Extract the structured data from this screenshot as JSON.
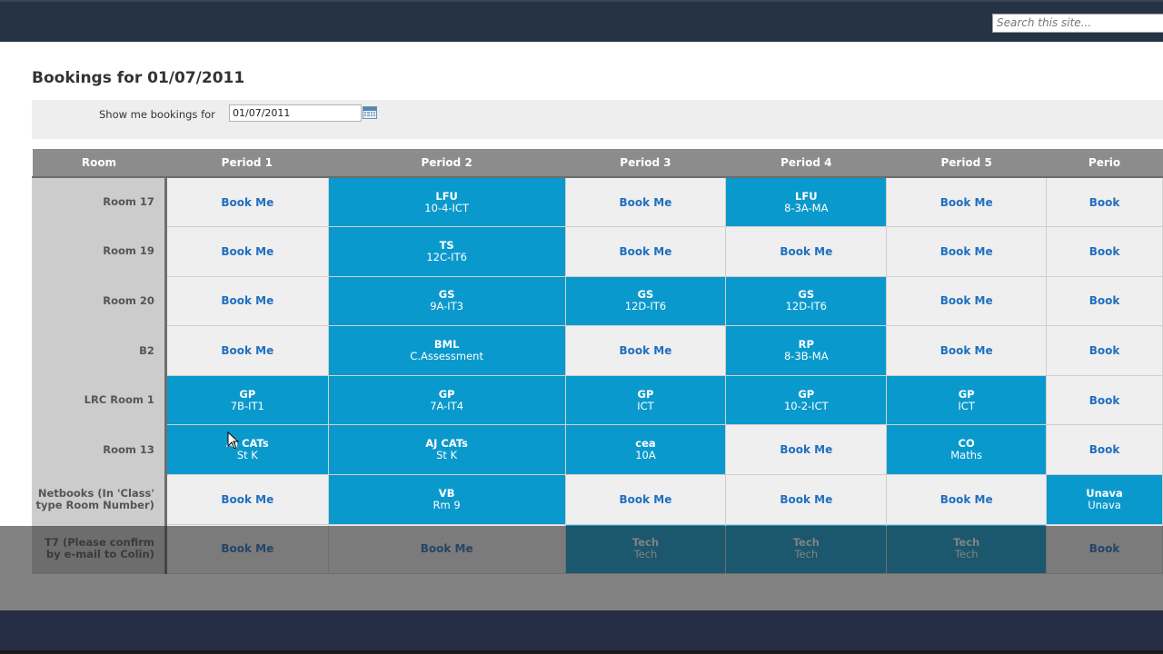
{
  "header": {
    "search_placeholder": "Search this site..."
  },
  "page": {
    "title": "Bookings for 01/07/2011"
  },
  "filter": {
    "label": "Show me bookings for",
    "date_value": "01/07/2011"
  },
  "table": {
    "headers": [
      "Room",
      "Period 1",
      "Period 2",
      "Period 3",
      "Period 4",
      "Period 5",
      "Perio"
    ],
    "rows": [
      {
        "room": "Room 17",
        "cells": [
          {
            "type": "free",
            "label": "Book Me"
          },
          {
            "type": "booked",
            "who": "LFU",
            "cls": "10-4-ICT"
          },
          {
            "type": "free",
            "label": "Book Me"
          },
          {
            "type": "booked",
            "who": "LFU",
            "cls": "8-3A-MA"
          },
          {
            "type": "free",
            "label": "Book Me"
          },
          {
            "type": "free",
            "label": "Book"
          }
        ]
      },
      {
        "room": "Room 19",
        "cells": [
          {
            "type": "free",
            "label": "Book Me"
          },
          {
            "type": "booked",
            "who": "TS",
            "cls": "12C-IT6"
          },
          {
            "type": "free",
            "label": "Book Me"
          },
          {
            "type": "free",
            "label": "Book Me"
          },
          {
            "type": "free",
            "label": "Book Me"
          },
          {
            "type": "free",
            "label": "Book"
          }
        ]
      },
      {
        "room": "Room 20",
        "cells": [
          {
            "type": "free",
            "label": "Book Me"
          },
          {
            "type": "booked",
            "who": "GS",
            "cls": "9A-IT3"
          },
          {
            "type": "booked",
            "who": "GS",
            "cls": "12D-IT6"
          },
          {
            "type": "booked",
            "who": "GS",
            "cls": "12D-IT6"
          },
          {
            "type": "free",
            "label": "Book Me"
          },
          {
            "type": "free",
            "label": "Book"
          }
        ]
      },
      {
        "room": "B2",
        "cells": [
          {
            "type": "free",
            "label": "Book Me"
          },
          {
            "type": "booked",
            "who": "BML",
            "cls": "C.Assessment"
          },
          {
            "type": "free",
            "label": "Book Me"
          },
          {
            "type": "booked",
            "who": "RP",
            "cls": "8-3B-MA"
          },
          {
            "type": "free",
            "label": "Book Me"
          },
          {
            "type": "free",
            "label": "Book"
          }
        ]
      },
      {
        "room": "LRC Room 1",
        "cells": [
          {
            "type": "booked",
            "who": "GP",
            "cls": "7B-IT1"
          },
          {
            "type": "booked",
            "who": "GP",
            "cls": "7A-IT4"
          },
          {
            "type": "booked",
            "who": "GP",
            "cls": "ICT"
          },
          {
            "type": "booked",
            "who": "GP",
            "cls": "10-2-ICT"
          },
          {
            "type": "booked",
            "who": "GP",
            "cls": "ICT"
          },
          {
            "type": "free",
            "label": "Book"
          }
        ]
      },
      {
        "room": "Room 13",
        "cells": [
          {
            "type": "booked",
            "who": "AJ CATs",
            "cls": "St K"
          },
          {
            "type": "booked",
            "who": "AJ CATs",
            "cls": "St K"
          },
          {
            "type": "booked",
            "who": "cea",
            "cls": "10A"
          },
          {
            "type": "free",
            "label": "Book Me"
          },
          {
            "type": "booked",
            "who": "CO",
            "cls": "Maths"
          },
          {
            "type": "free",
            "label": "Book"
          }
        ]
      },
      {
        "room": "Netbooks (In 'Class' type Room Number)",
        "cells": [
          {
            "type": "free",
            "label": "Book Me"
          },
          {
            "type": "booked",
            "who": "VB",
            "cls": "Rm 9"
          },
          {
            "type": "free",
            "label": "Book Me"
          },
          {
            "type": "free",
            "label": "Book Me"
          },
          {
            "type": "free",
            "label": "Book Me"
          },
          {
            "type": "booked",
            "who": "Unava",
            "cls": "Unava"
          }
        ]
      },
      {
        "room": "T7 (Please confirm by e-mail to Colin)",
        "cells": [
          {
            "type": "free",
            "label": "Book Me"
          },
          {
            "type": "free",
            "label": "Book Me"
          },
          {
            "type": "booked",
            "who": "Tech",
            "cls": "Tech"
          },
          {
            "type": "booked",
            "who": "Tech",
            "cls": "Tech"
          },
          {
            "type": "booked",
            "who": "Tech",
            "cls": "Tech"
          },
          {
            "type": "free",
            "label": "Book"
          }
        ]
      }
    ]
  }
}
